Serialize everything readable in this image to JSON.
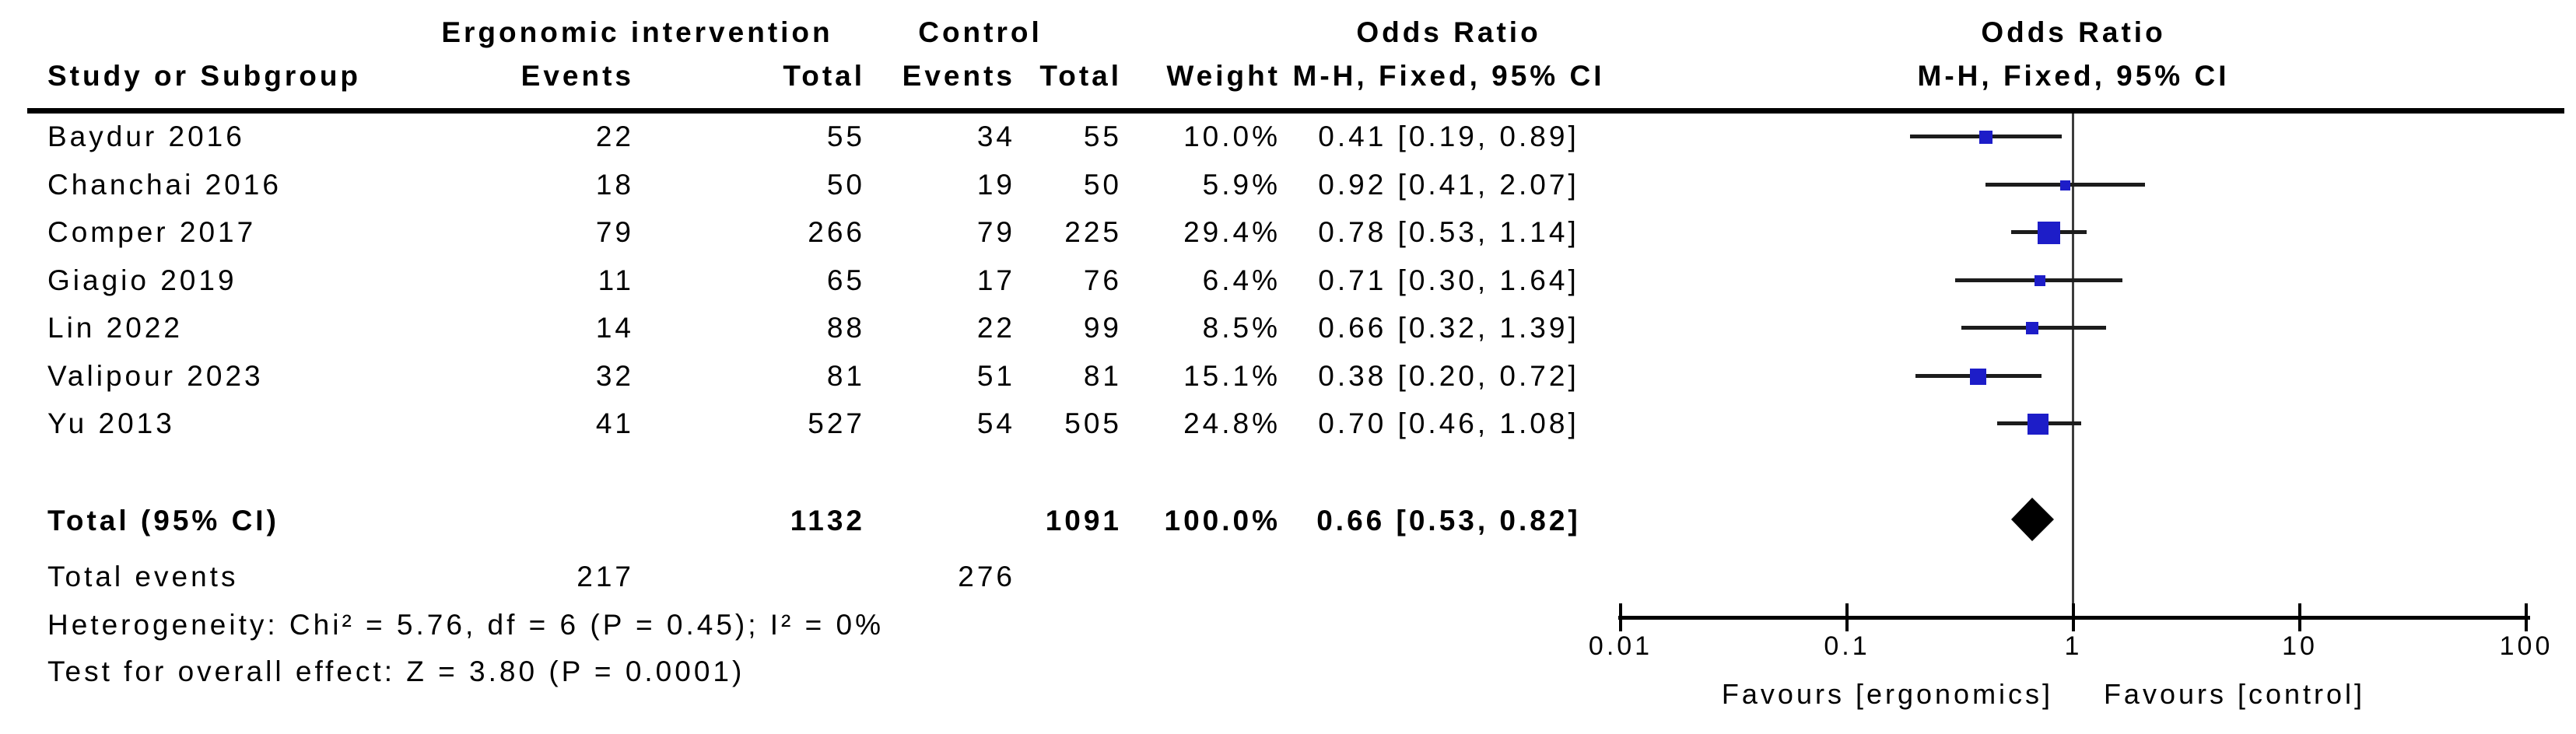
{
  "colors": {
    "square": "#1d1dc8",
    "ci_line": "#1c1c1c",
    "null_line": "#3c3c3c",
    "axis": "#000000",
    "diamond": "#000000",
    "text": "#000000"
  },
  "table": {
    "group_headers": {
      "intervention": "Ergonomic intervention",
      "control": "Control",
      "odds_ratio_text": "Odds Ratio",
      "odds_ratio_plot": "Odds Ratio"
    },
    "column_headers": {
      "study": "Study or Subgroup",
      "events_intervention": "Events",
      "total_intervention": "Total",
      "events_control": "Events",
      "total_control": "Total",
      "weight": "Weight",
      "mh_text": "M-H, Fixed, 95% CI",
      "mh_plot": "M-H, Fixed, 95% CI"
    },
    "rows": [
      {
        "study": "Baydur 2016",
        "events_intervention": "22",
        "total_intervention": "55",
        "events_control": "34",
        "total_control": "55",
        "weight": "10.0%",
        "ci": "0.41 [0.19, 0.89]"
      },
      {
        "study": "Chanchai 2016",
        "events_intervention": "18",
        "total_intervention": "50",
        "events_control": "19",
        "total_control": "50",
        "weight": "5.9%",
        "ci": "0.92 [0.41, 2.07]"
      },
      {
        "study": "Comper 2017",
        "events_intervention": "79",
        "total_intervention": "266",
        "events_control": "79",
        "total_control": "225",
        "weight": "29.4%",
        "ci": "0.78 [0.53, 1.14]"
      },
      {
        "study": "Giagio 2019",
        "events_intervention": "11",
        "total_intervention": "65",
        "events_control": "17",
        "total_control": "76",
        "weight": "6.4%",
        "ci": "0.71 [0.30, 1.64]"
      },
      {
        "study": "Lin 2022",
        "events_intervention": "14",
        "total_intervention": "88",
        "events_control": "22",
        "total_control": "99",
        "weight": "8.5%",
        "ci": "0.66 [0.32, 1.39]"
      },
      {
        "study": "Valipour 2023",
        "events_intervention": "32",
        "total_intervention": "81",
        "events_control": "51",
        "total_control": "81",
        "weight": "15.1%",
        "ci": "0.38 [0.20, 0.72]"
      },
      {
        "study": "Yu 2013",
        "events_intervention": "41",
        "total_intervention": "527",
        "events_control": "54",
        "total_control": "505",
        "weight": "24.8%",
        "ci": "0.70 [0.46, 1.08]"
      }
    ],
    "total_row": {
      "label": "Total (95% CI)",
      "total_intervention": "1132",
      "total_control": "1091",
      "weight": "100.0%",
      "ci": "0.66 [0.53, 0.82]"
    },
    "total_events_row": {
      "label": "Total events",
      "events_intervention": "217",
      "events_control": "276"
    },
    "heterogeneity": "Heterogeneity: Chi² = 5.76, df = 6 (P = 0.45); I² = 0%",
    "overall_effect": "Test for overall effect: Z = 3.80 (P = 0.0001)"
  },
  "chart_data": {
    "type": "forest",
    "effect_measure": "Odds Ratio",
    "method": "M-H, Fixed, 95% CI",
    "x_scale": "log",
    "x_ticks": [
      0.01,
      0.1,
      1,
      10,
      100
    ],
    "x_tick_labels": [
      "0.01",
      "0.1",
      "1",
      "10",
      "100"
    ],
    "x_range": [
      0.01,
      100
    ],
    "null_value": 1,
    "studies": [
      {
        "name": "Baydur 2016",
        "or": 0.41,
        "ci_low": 0.19,
        "ci_high": 0.89,
        "weight_pct": 10.0
      },
      {
        "name": "Chanchai 2016",
        "or": 0.92,
        "ci_low": 0.41,
        "ci_high": 2.07,
        "weight_pct": 5.9
      },
      {
        "name": "Comper 2017",
        "or": 0.78,
        "ci_low": 0.53,
        "ci_high": 1.14,
        "weight_pct": 29.4
      },
      {
        "name": "Giagio 2019",
        "or": 0.71,
        "ci_low": 0.3,
        "ci_high": 1.64,
        "weight_pct": 6.4
      },
      {
        "name": "Lin 2022",
        "or": 0.66,
        "ci_low": 0.32,
        "ci_high": 1.39,
        "weight_pct": 8.5
      },
      {
        "name": "Valipour 2023",
        "or": 0.38,
        "ci_low": 0.2,
        "ci_high": 0.72,
        "weight_pct": 15.1
      },
      {
        "name": "Yu 2013",
        "or": 0.7,
        "ci_low": 0.46,
        "ci_high": 1.08,
        "weight_pct": 24.8
      }
    ],
    "total": {
      "label": "Total (95% CI)",
      "or": 0.66,
      "ci_low": 0.53,
      "ci_high": 0.82,
      "weight_pct": 100.0
    },
    "footer": {
      "favours_left": "Favours [ergonomics]",
      "favours_right": "Favours [control]"
    }
  }
}
